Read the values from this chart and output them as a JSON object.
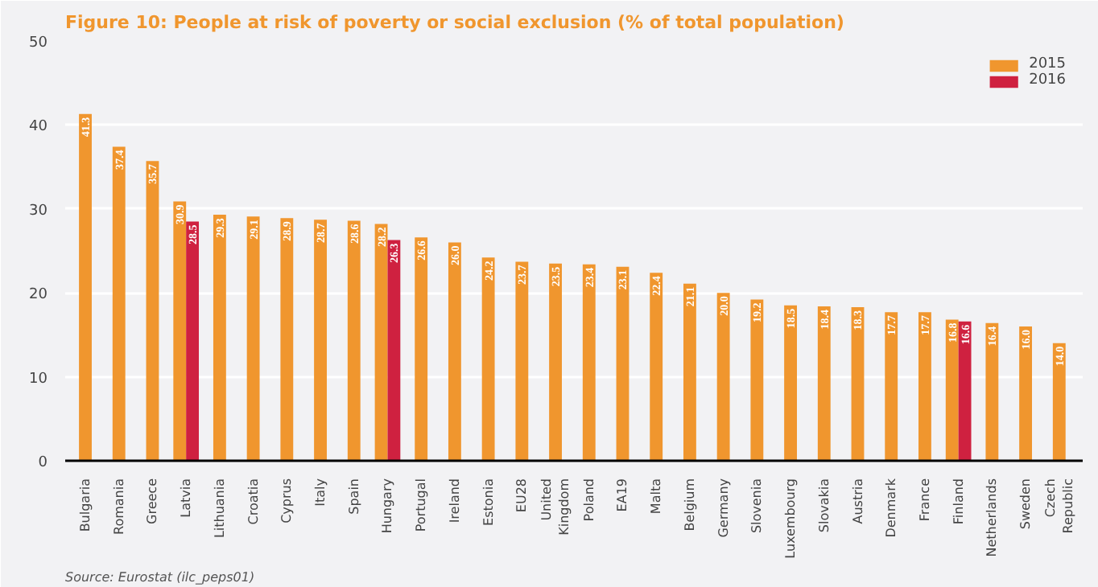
{
  "chart_data": {
    "type": "bar",
    "title": "Figure 10: People at risk of poverty or social exclusion (% of total population)",
    "categories": [
      "Bulgaria",
      "Romania",
      "Greece",
      "Latvia",
      "Lithuania",
      "Croatia",
      "Cyprus",
      "Italy",
      "Spain",
      "Hungary",
      "Portugal",
      "Ireland",
      "Estonia",
      "EU28",
      "United Kingdom",
      "Poland",
      "EA19",
      "Malta",
      "Belgium",
      "Germany",
      "Slovenia",
      "Luxembourg",
      "Slovakia",
      "Austria",
      "Denmark",
      "France",
      "Finland",
      "Netherlands",
      "Sweden",
      "Czech Republic"
    ],
    "series": [
      {
        "name": "2015",
        "color": "#f0962e",
        "values": [
          41.3,
          37.4,
          35.7,
          30.9,
          29.3,
          29.1,
          28.9,
          28.7,
          28.6,
          28.2,
          26.6,
          26.0,
          24.2,
          23.7,
          23.5,
          23.4,
          23.1,
          22.4,
          21.1,
          20.0,
          19.2,
          18.5,
          18.4,
          18.3,
          17.7,
          17.7,
          16.8,
          16.4,
          16.0,
          14.0
        ],
        "value_labels": [
          "41.3",
          "37.4",
          "35.7",
          "30.9",
          "29.3",
          "29.1",
          "28.9",
          "28.7",
          "28.6",
          "28.2",
          "26.6",
          "26.0",
          "24.2",
          "23.7",
          "23.5",
          "23.4",
          "23.1",
          "22.4",
          "21.1",
          "20.0",
          "19.2",
          "18.5",
          "18.4",
          "18.3",
          "17.7",
          "17.7",
          "16.8",
          "16.4",
          "16.0",
          "14.0"
        ]
      },
      {
        "name": "2016",
        "color": "#cf2140",
        "values": [
          null,
          null,
          null,
          28.5,
          null,
          null,
          null,
          null,
          null,
          26.3,
          null,
          null,
          null,
          null,
          null,
          null,
          null,
          null,
          null,
          null,
          null,
          null,
          null,
          null,
          null,
          null,
          16.6,
          null,
          null,
          null
        ],
        "value_labels": [
          null,
          null,
          null,
          "28.5",
          null,
          null,
          null,
          null,
          null,
          "26.3",
          null,
          null,
          null,
          null,
          null,
          null,
          null,
          null,
          null,
          null,
          null,
          null,
          null,
          null,
          null,
          null,
          "16.6",
          null,
          null,
          null
        ]
      }
    ],
    "ylim": [
      0,
      50
    ],
    "yticks": [
      0,
      10,
      20,
      30,
      40,
      50
    ],
    "grid": "y",
    "legend": "top right",
    "annotations": [
      "Source: Eurostat (ilc_peps01)"
    ]
  }
}
